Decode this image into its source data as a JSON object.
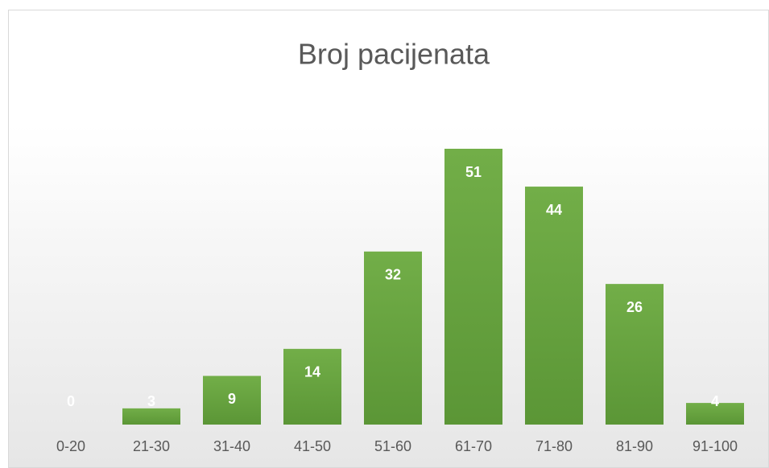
{
  "chart_data": {
    "type": "bar",
    "title": "Broj pacijenata",
    "categories": [
      "0-20",
      "21-30",
      "31-40",
      "41-50",
      "51-60",
      "61-70",
      "71-80",
      "81-90",
      "91-100"
    ],
    "values": [
      0,
      3,
      9,
      14,
      32,
      51,
      44,
      26,
      4
    ],
    "color": "#70ad47"
  }
}
